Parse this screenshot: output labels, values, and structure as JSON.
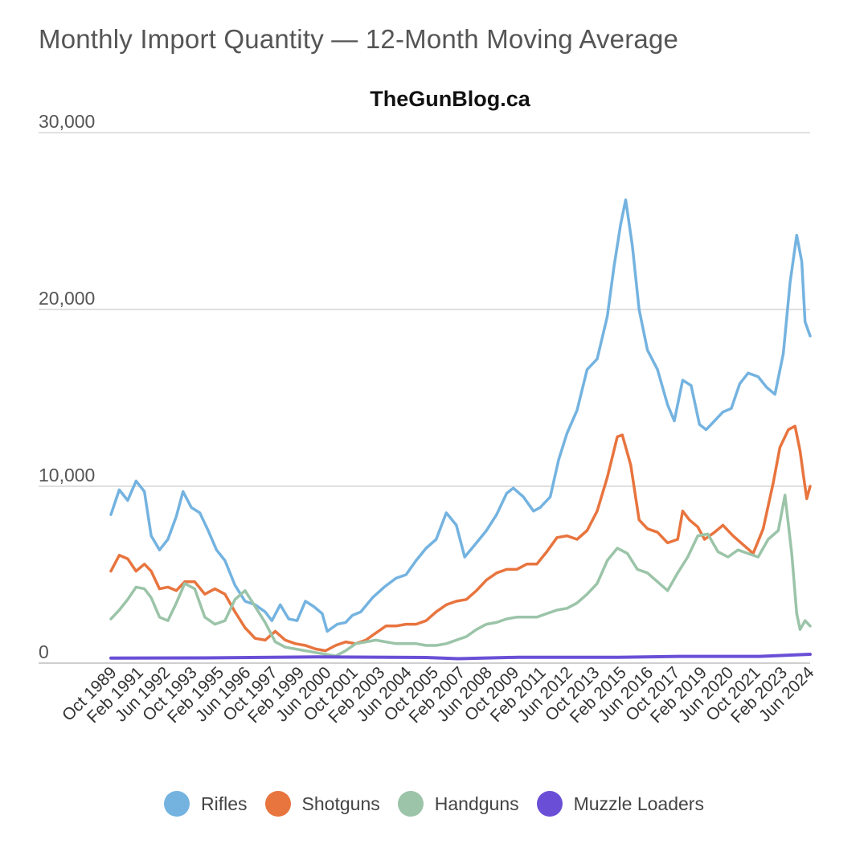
{
  "title": "Monthly Import Quantity — 12-Month Moving Average",
  "subtitle": "TheGunBlog.ca",
  "chart_data": {
    "type": "line",
    "title": "Monthly Import Quantity — 12-Month Moving Average",
    "subtitle": "TheGunBlog.ca",
    "xlabel": "",
    "ylabel": "",
    "ylim": [
      0,
      30000
    ],
    "yticks": [
      "0",
      "10,000",
      "20,000",
      "30,000"
    ],
    "ytick_values": [
      0,
      10000,
      20000,
      30000
    ],
    "grid": true,
    "legend_position": "bottom",
    "x_range": [
      "1989-10",
      "2024-07"
    ],
    "xtick_labels": [
      "Oct 1989",
      "Feb 1991",
      "Jun 1992",
      "Oct 1993",
      "Feb 1995",
      "Jun 1996",
      "Oct 1997",
      "Feb 1999",
      "Jun 2000",
      "Oct 2001",
      "Feb 2003",
      "Jun 2004",
      "Oct 2005",
      "Feb 2007",
      "Jun 2008",
      "Oct 2009",
      "Feb 2011",
      "Jun 2012",
      "Oct 2013",
      "Feb 2015",
      "Jun 2016",
      "Oct 2017",
      "Feb 2019",
      "Jun 2020",
      "Oct 2021",
      "Feb 2023",
      "Jun 2024"
    ],
    "xtick_dates": [
      "1989-10",
      "1991-02",
      "1992-06",
      "1993-10",
      "1995-02",
      "1996-06",
      "1997-10",
      "1999-02",
      "2000-06",
      "2001-10",
      "2003-02",
      "2004-06",
      "2005-10",
      "2007-02",
      "2008-06",
      "2009-10",
      "2011-02",
      "2012-06",
      "2013-10",
      "2015-02",
      "2016-06",
      "2017-10",
      "2019-02",
      "2020-06",
      "2021-10",
      "2023-02",
      "2024-06"
    ],
    "series": [
      {
        "name": "Rifles",
        "color": "#74b3e0",
        "points": [
          [
            "1989-10",
            8400
          ],
          [
            "1990-03",
            9800
          ],
          [
            "1990-08",
            9200
          ],
          [
            "1991-01",
            10300
          ],
          [
            "1991-06",
            9700
          ],
          [
            "1991-10",
            7200
          ],
          [
            "1992-03",
            6400
          ],
          [
            "1992-08",
            7000
          ],
          [
            "1993-01",
            8300
          ],
          [
            "1993-05",
            9700
          ],
          [
            "1993-10",
            8800
          ],
          [
            "1994-03",
            8500
          ],
          [
            "1994-08",
            7500
          ],
          [
            "1995-01",
            6400
          ],
          [
            "1995-06",
            5800
          ],
          [
            "1995-12",
            4400
          ],
          [
            "1996-06",
            3500
          ],
          [
            "1996-12",
            3300
          ],
          [
            "1997-06",
            2900
          ],
          [
            "1997-10",
            2400
          ],
          [
            "1998-03",
            3300
          ],
          [
            "1998-08",
            2500
          ],
          [
            "1999-01",
            2400
          ],
          [
            "1999-06",
            3500
          ],
          [
            "1999-11",
            3200
          ],
          [
            "2000-04",
            2800
          ],
          [
            "2000-07",
            1800
          ],
          [
            "2001-01",
            2200
          ],
          [
            "2001-06",
            2300
          ],
          [
            "2001-10",
            2700
          ],
          [
            "2002-03",
            2900
          ],
          [
            "2002-10",
            3700
          ],
          [
            "2003-05",
            4300
          ],
          [
            "2003-12",
            4800
          ],
          [
            "2004-06",
            5000
          ],
          [
            "2004-12",
            5800
          ],
          [
            "2005-06",
            6500
          ],
          [
            "2005-12",
            7000
          ],
          [
            "2006-06",
            8500
          ],
          [
            "2006-12",
            7800
          ],
          [
            "2007-05",
            6000
          ],
          [
            "2007-12",
            6800
          ],
          [
            "2008-06",
            7500
          ],
          [
            "2008-12",
            8400
          ],
          [
            "2009-06",
            9600
          ],
          [
            "2009-10",
            9900
          ],
          [
            "2010-04",
            9400
          ],
          [
            "2010-10",
            8600
          ],
          [
            "2011-02",
            8800
          ],
          [
            "2011-08",
            9400
          ],
          [
            "2012-01",
            11500
          ],
          [
            "2012-06",
            13000
          ],
          [
            "2012-12",
            14300
          ],
          [
            "2013-06",
            16600
          ],
          [
            "2013-12",
            17200
          ],
          [
            "2014-06",
            19600
          ],
          [
            "2014-10",
            22400
          ],
          [
            "2015-02",
            24800
          ],
          [
            "2015-05",
            26200
          ],
          [
            "2015-09",
            23600
          ],
          [
            "2016-01",
            20000
          ],
          [
            "2016-06",
            17700
          ],
          [
            "2016-12",
            16600
          ],
          [
            "2017-06",
            14600
          ],
          [
            "2017-10",
            13700
          ],
          [
            "2018-03",
            16000
          ],
          [
            "2018-08",
            15700
          ],
          [
            "2019-01",
            13500
          ],
          [
            "2019-05",
            13200
          ],
          [
            "2019-10",
            13700
          ],
          [
            "2020-03",
            14200
          ],
          [
            "2020-08",
            14400
          ],
          [
            "2021-01",
            15800
          ],
          [
            "2021-06",
            16400
          ],
          [
            "2021-12",
            16200
          ],
          [
            "2022-05",
            15600
          ],
          [
            "2022-10",
            15200
          ],
          [
            "2023-03",
            17500
          ],
          [
            "2023-07",
            21500
          ],
          [
            "2023-11",
            24200
          ],
          [
            "2024-02",
            22700
          ],
          [
            "2024-04",
            19300
          ],
          [
            "2024-07",
            18500
          ]
        ]
      },
      {
        "name": "Shotguns",
        "color": "#e8743e",
        "points": [
          [
            "1989-10",
            5200
          ],
          [
            "1990-03",
            6100
          ],
          [
            "1990-08",
            5900
          ],
          [
            "1991-01",
            5200
          ],
          [
            "1991-06",
            5600
          ],
          [
            "1991-10",
            5200
          ],
          [
            "1992-03",
            4200
          ],
          [
            "1992-08",
            4300
          ],
          [
            "1993-01",
            4100
          ],
          [
            "1993-06",
            4600
          ],
          [
            "1993-12",
            4600
          ],
          [
            "1994-06",
            3900
          ],
          [
            "1994-12",
            4200
          ],
          [
            "1995-06",
            3900
          ],
          [
            "1995-12",
            2900
          ],
          [
            "1996-06",
            2000
          ],
          [
            "1996-12",
            1400
          ],
          [
            "1997-06",
            1300
          ],
          [
            "1997-12",
            1800
          ],
          [
            "1998-06",
            1300
          ],
          [
            "1998-12",
            1100
          ],
          [
            "1999-06",
            1000
          ],
          [
            "1999-12",
            800
          ],
          [
            "2000-06",
            700
          ],
          [
            "2000-12",
            1000
          ],
          [
            "2001-06",
            1200
          ],
          [
            "2001-12",
            1100
          ],
          [
            "2002-06",
            1300
          ],
          [
            "2002-12",
            1700
          ],
          [
            "2003-06",
            2100
          ],
          [
            "2003-12",
            2100
          ],
          [
            "2004-06",
            2200
          ],
          [
            "2004-12",
            2200
          ],
          [
            "2005-06",
            2400
          ],
          [
            "2005-12",
            2900
          ],
          [
            "2006-06",
            3300
          ],
          [
            "2006-12",
            3500
          ],
          [
            "2007-06",
            3600
          ],
          [
            "2007-12",
            4100
          ],
          [
            "2008-06",
            4700
          ],
          [
            "2008-12",
            5100
          ],
          [
            "2009-06",
            5300
          ],
          [
            "2009-12",
            5300
          ],
          [
            "2010-06",
            5600
          ],
          [
            "2010-12",
            5600
          ],
          [
            "2011-06",
            6300
          ],
          [
            "2011-12",
            7100
          ],
          [
            "2012-06",
            7200
          ],
          [
            "2012-12",
            7000
          ],
          [
            "2013-06",
            7500
          ],
          [
            "2013-12",
            8600
          ],
          [
            "2014-06",
            10500
          ],
          [
            "2014-12",
            12800
          ],
          [
            "2015-03",
            12900
          ],
          [
            "2015-08",
            11200
          ],
          [
            "2016-01",
            8100
          ],
          [
            "2016-06",
            7600
          ],
          [
            "2016-12",
            7400
          ],
          [
            "2017-06",
            6800
          ],
          [
            "2017-12",
            7000
          ],
          [
            "2018-03",
            8600
          ],
          [
            "2018-07",
            8100
          ],
          [
            "2018-12",
            7700
          ],
          [
            "2019-04",
            7000
          ],
          [
            "2019-10",
            7400
          ],
          [
            "2020-03",
            7800
          ],
          [
            "2020-09",
            7200
          ],
          [
            "2021-03",
            6700
          ],
          [
            "2021-09",
            6200
          ],
          [
            "2022-03",
            7600
          ],
          [
            "2022-09",
            10200
          ],
          [
            "2023-01",
            12200
          ],
          [
            "2023-06",
            13200
          ],
          [
            "2023-10",
            13400
          ],
          [
            "2024-01",
            12000
          ],
          [
            "2024-03",
            10600
          ],
          [
            "2024-05",
            9300
          ],
          [
            "2024-07",
            10000
          ]
        ]
      },
      {
        "name": "Handguns",
        "color": "#9bc4a8",
        "points": [
          [
            "1989-10",
            2500
          ],
          [
            "1990-03",
            3000
          ],
          [
            "1990-08",
            3600
          ],
          [
            "1991-01",
            4300
          ],
          [
            "1991-06",
            4200
          ],
          [
            "1991-10",
            3700
          ],
          [
            "1992-03",
            2600
          ],
          [
            "1992-08",
            2400
          ],
          [
            "1993-01",
            3400
          ],
          [
            "1993-06",
            4500
          ],
          [
            "1993-12",
            4200
          ],
          [
            "1994-06",
            2600
          ],
          [
            "1994-12",
            2200
          ],
          [
            "1995-06",
            2400
          ],
          [
            "1995-12",
            3600
          ],
          [
            "1996-06",
            4100
          ],
          [
            "1996-12",
            3200
          ],
          [
            "1997-06",
            2300
          ],
          [
            "1997-12",
            1200
          ],
          [
            "1998-06",
            900
          ],
          [
            "1998-12",
            800
          ],
          [
            "1999-06",
            700
          ],
          [
            "1999-12",
            600
          ],
          [
            "2000-06",
            500
          ],
          [
            "2000-12",
            400
          ],
          [
            "2001-06",
            700
          ],
          [
            "2001-12",
            1100
          ],
          [
            "2002-06",
            1200
          ],
          [
            "2002-12",
            1300
          ],
          [
            "2003-06",
            1200
          ],
          [
            "2003-12",
            1100
          ],
          [
            "2004-06",
            1100
          ],
          [
            "2004-12",
            1100
          ],
          [
            "2005-06",
            1000
          ],
          [
            "2005-12",
            1000
          ],
          [
            "2006-06",
            1100
          ],
          [
            "2006-12",
            1300
          ],
          [
            "2007-06",
            1500
          ],
          [
            "2007-12",
            1900
          ],
          [
            "2008-06",
            2200
          ],
          [
            "2008-12",
            2300
          ],
          [
            "2009-06",
            2500
          ],
          [
            "2009-12",
            2600
          ],
          [
            "2010-06",
            2600
          ],
          [
            "2010-12",
            2600
          ],
          [
            "2011-06",
            2800
          ],
          [
            "2011-12",
            3000
          ],
          [
            "2012-06",
            3100
          ],
          [
            "2012-12",
            3400
          ],
          [
            "2013-06",
            3900
          ],
          [
            "2013-12",
            4500
          ],
          [
            "2014-06",
            5800
          ],
          [
            "2014-12",
            6500
          ],
          [
            "2015-06",
            6200
          ],
          [
            "2015-12",
            5300
          ],
          [
            "2016-06",
            5100
          ],
          [
            "2016-12",
            4600
          ],
          [
            "2017-06",
            4100
          ],
          [
            "2017-12",
            5100
          ],
          [
            "2018-06",
            6000
          ],
          [
            "2018-12",
            7200
          ],
          [
            "2019-06",
            7300
          ],
          [
            "2019-12",
            6300
          ],
          [
            "2020-06",
            6000
          ],
          [
            "2020-12",
            6400
          ],
          [
            "2021-06",
            6200
          ],
          [
            "2021-12",
            6000
          ],
          [
            "2022-06",
            7000
          ],
          [
            "2022-12",
            7500
          ],
          [
            "2023-04",
            9500
          ],
          [
            "2023-08",
            6200
          ],
          [
            "2023-11",
            2800
          ],
          [
            "2024-01",
            1900
          ],
          [
            "2024-04",
            2400
          ],
          [
            "2024-07",
            2100
          ]
        ]
      },
      {
        "name": "Muzzle Loaders",
        "color": "#6a4fd6",
        "points": [
          [
            "1989-10",
            280
          ],
          [
            "1995-01",
            300
          ],
          [
            "2000-01",
            350
          ],
          [
            "2005-06",
            320
          ],
          [
            "2007-01",
            250
          ],
          [
            "2010-01",
            330
          ],
          [
            "2015-01",
            330
          ],
          [
            "2018-01",
            380
          ],
          [
            "2022-01",
            380
          ],
          [
            "2024-07",
            500
          ]
        ]
      }
    ]
  },
  "legend": [
    {
      "label": "Rifles",
      "color": "#74b3e0"
    },
    {
      "label": "Shotguns",
      "color": "#e8743e"
    },
    {
      "label": "Handguns",
      "color": "#9bc4a8"
    },
    {
      "label": "Muzzle Loaders",
      "color": "#6a4fd6"
    }
  ]
}
